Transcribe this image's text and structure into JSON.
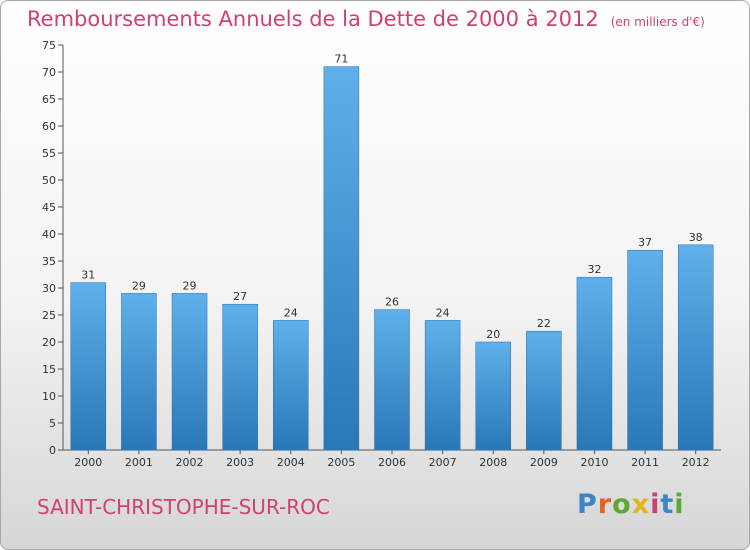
{
  "title": "Remboursements Annuels de la Dette de 2000 à 2012",
  "unit": "(en milliers d'€)",
  "commune": "SAINT-CHRISTOPHE-SUR-ROC",
  "logo": {
    "letters": [
      "P",
      "r",
      "o",
      "x",
      "i",
      "t",
      "i"
    ],
    "colors": [
      "#3d86c6",
      "#e0641f",
      "#5aa832",
      "#e0b51c",
      "#d1406f",
      "#3d86c6",
      "#5aa832"
    ]
  },
  "colors": {
    "title": "#d1406f",
    "bar_top": "#5fb0ea",
    "bar_bottom": "#2a77b7"
  },
  "chart_data": {
    "type": "bar",
    "title": "Remboursements Annuels de la Dette de 2000 à 2012",
    "unit": "(en milliers d'€)",
    "categories": [
      "2000",
      "2001",
      "2002",
      "2003",
      "2004",
      "2005",
      "2006",
      "2007",
      "2008",
      "2009",
      "2010",
      "2011",
      "2012"
    ],
    "values": [
      31,
      29,
      29,
      27,
      24,
      71,
      26,
      24,
      20,
      22,
      32,
      37,
      38
    ],
    "ylim": [
      0,
      75
    ],
    "yticks": [
      0,
      5,
      10,
      15,
      20,
      25,
      30,
      35,
      40,
      45,
      50,
      55,
      60,
      65,
      70,
      75
    ],
    "grid": false,
    "data_labels": true
  }
}
